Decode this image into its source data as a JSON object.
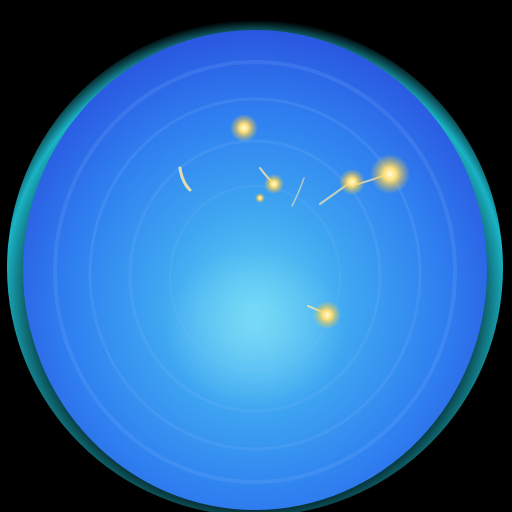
{
  "scene": {
    "background_color": "#000000",
    "colors": {
      "outer_glow": "#1fd3e8",
      "mid_blue": "#2f7ff0",
      "deep_blue": "#2a56e0",
      "inner_light": "#55c3f2",
      "sparkle_core": "#fff6b8",
      "sparkle_glow": "#f2c94c",
      "trail": "#ffe9a6"
    },
    "description_items": [
      "glowing-orb",
      "sparkle",
      "sparkle-trail"
    ]
  }
}
